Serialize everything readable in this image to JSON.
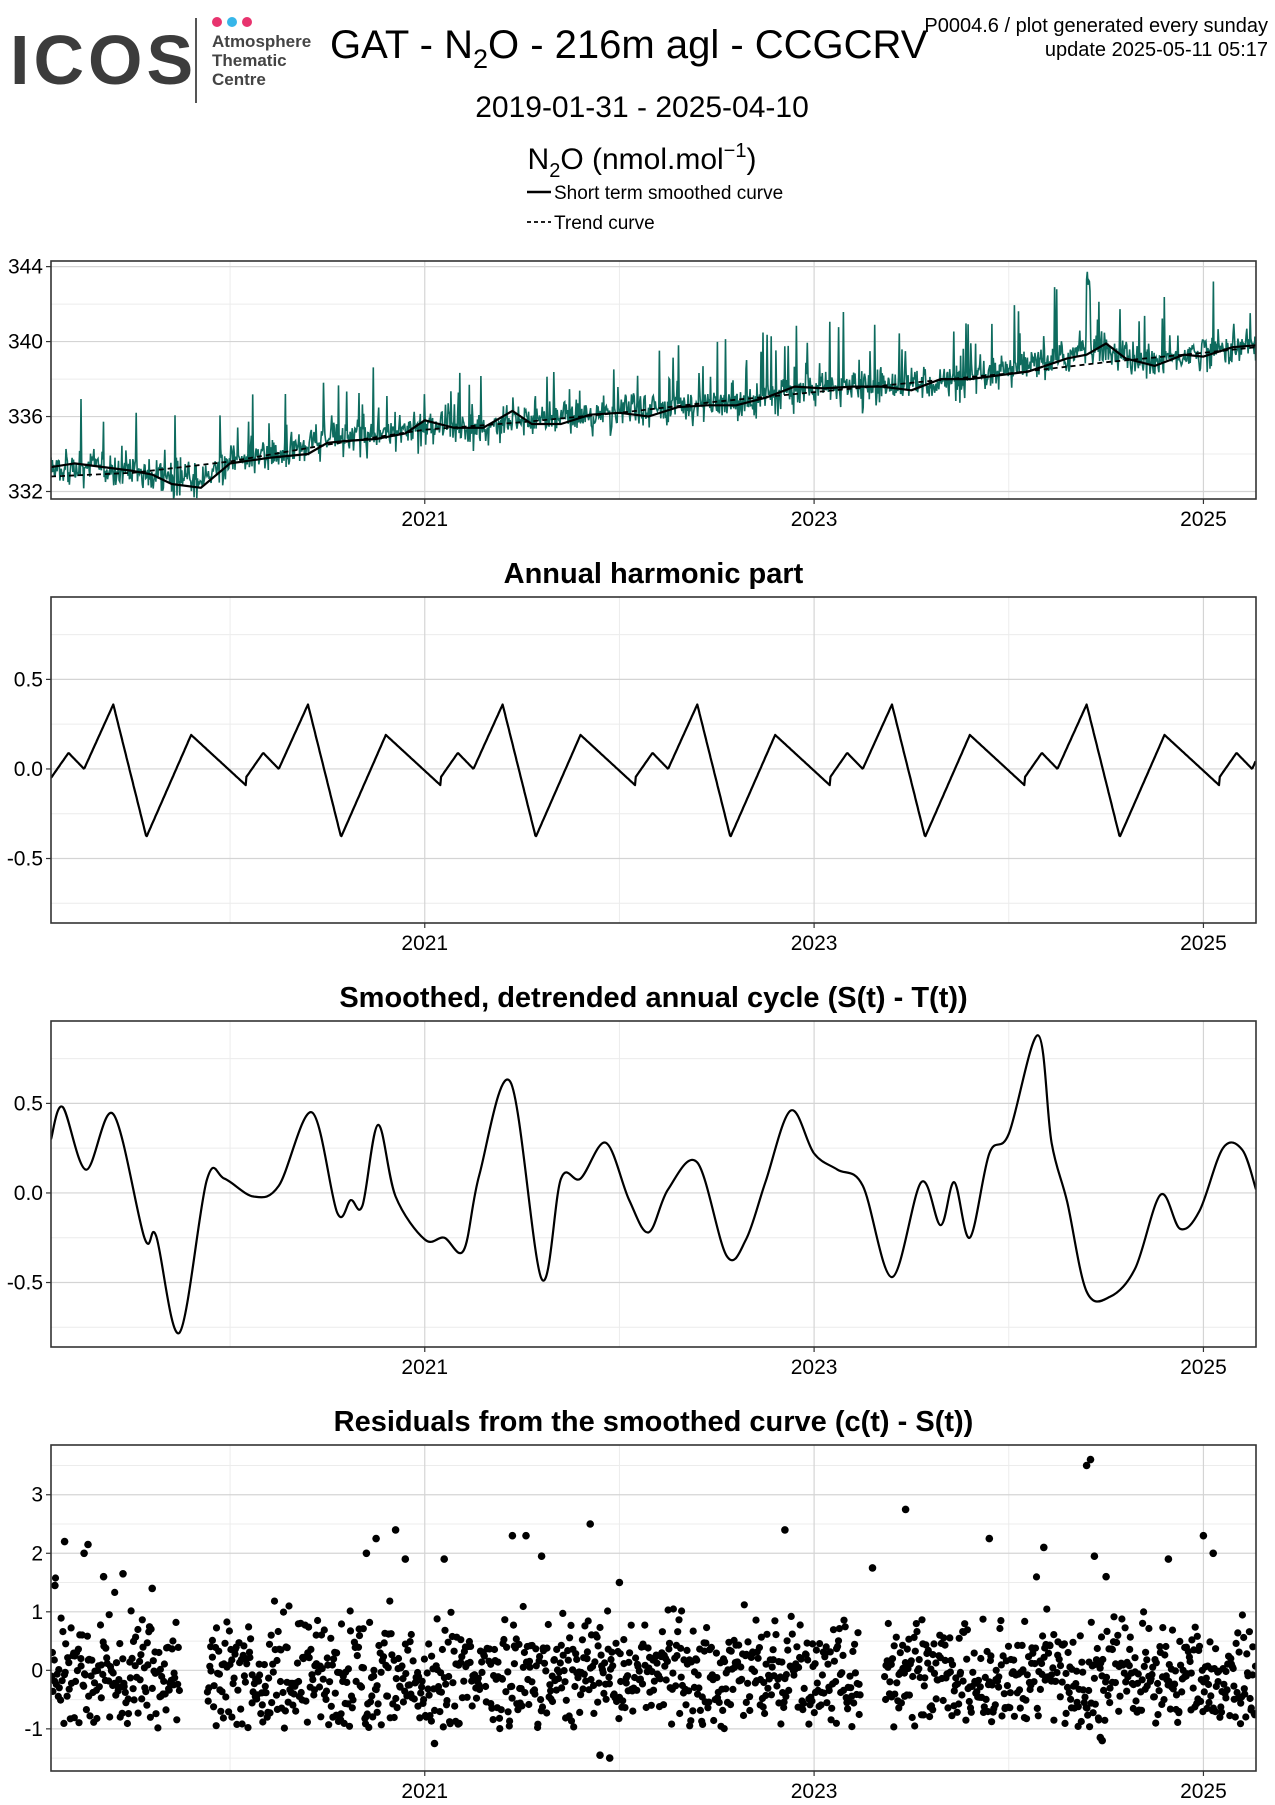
{
  "header": {
    "logo_text": "ICOS",
    "logo_sub": [
      "Atmosphere",
      "Thematic",
      "Centre"
    ],
    "logo_dot_colors": [
      "#e8336e",
      "#36b6e9",
      "#e8336e"
    ],
    "title_prefix": "GAT - N",
    "title_sub": "2",
    "title_suffix": "O - 216m agl - CCGCRV",
    "product_code": "P0004.6 / plot generated every sunday",
    "update": "update  2025-05-11 05:17",
    "date_range": "2019-01-31 - 2025-04-10",
    "units_prefix": "N",
    "units_sub": "2",
    "units_mid": "O (nmol.mol",
    "units_sup": "−1",
    "units_end": ")"
  },
  "legend": {
    "items": [
      {
        "label": "Short term smoothed curve",
        "style": "solid"
      },
      {
        "label": "Trend curve",
        "style": "dashed"
      }
    ]
  },
  "colors": {
    "measurement": "#0e6b5e",
    "curve": "#000000",
    "grid_major": "#d4d4d4",
    "grid_minor": "#ececec",
    "frame": "#333333"
  },
  "chart_data": [
    {
      "id": "timeseries",
      "type": "line",
      "title": "",
      "ylabel": "",
      "x_range": [
        2019.08,
        2025.27
      ],
      "ylim": [
        331.6,
        344.3
      ],
      "y_ticks": [
        332,
        336,
        340,
        344
      ],
      "x_ticks": [
        {
          "value": 2021,
          "label": "2021"
        },
        {
          "value": 2023,
          "label": "2023"
        },
        {
          "value": 2025,
          "label": "2025"
        }
      ],
      "grid": true,
      "series": [
        {
          "name": "",
          "kind": "measurements",
          "color": "#0e6b5e",
          "x": [
            2019.08,
            2019.3,
            2019.5,
            2019.7,
            2019.85,
            2020.0,
            2020.3,
            2020.5,
            2020.8,
            2021.0,
            2021.3,
            2021.5,
            2021.8,
            2022.0,
            2022.3,
            2022.5,
            2022.8,
            2023.0,
            2023.3,
            2023.5,
            2023.8,
            2024.0,
            2024.3,
            2024.4,
            2024.5,
            2024.7,
            2025.0,
            2025.27
          ],
          "y": [
            333.4,
            333.2,
            333.0,
            332.8,
            332.7,
            333.6,
            334.1,
            334.9,
            335.0,
            335.6,
            335.3,
            336.0,
            336.0,
            336.2,
            336.7,
            336.6,
            337.2,
            337.5,
            337.6,
            337.8,
            337.9,
            338.4,
            339.2,
            339.7,
            339.6,
            338.8,
            339.5,
            339.8
          ]
        },
        {
          "name": "Short term smoothed curve",
          "kind": "smoothed",
          "color": "#000000",
          "x": [
            2019.08,
            2019.2,
            2019.35,
            2019.5,
            2019.6,
            2019.7,
            2019.85,
            2020.0,
            2020.2,
            2020.4,
            2020.5,
            2020.6,
            2020.75,
            2020.9,
            2021.0,
            2021.15,
            2021.3,
            2021.45,
            2021.55,
            2021.7,
            2021.85,
            2022.0,
            2022.15,
            2022.3,
            2022.45,
            2022.6,
            2022.75,
            2022.9,
            2023.05,
            2023.2,
            2023.35,
            2023.5,
            2023.65,
            2023.8,
            2023.95,
            2024.1,
            2024.3,
            2024.4,
            2024.5,
            2024.6,
            2024.75,
            2024.9,
            2025.0,
            2025.15,
            2025.27
          ],
          "y": [
            333.3,
            333.5,
            333.3,
            333.1,
            332.9,
            332.4,
            332.2,
            333.5,
            333.8,
            334.0,
            334.6,
            334.7,
            334.8,
            335.1,
            335.8,
            335.4,
            335.4,
            336.3,
            335.6,
            335.6,
            336.1,
            336.2,
            336.0,
            336.5,
            336.6,
            336.6,
            337.0,
            337.6,
            337.5,
            337.6,
            337.6,
            337.4,
            338.0,
            338.0,
            338.2,
            338.4,
            339.1,
            339.3,
            339.9,
            339.1,
            338.7,
            339.3,
            339.2,
            339.7,
            339.8
          ]
        },
        {
          "name": "Trend curve",
          "kind": "trend",
          "color": "#000000",
          "x": [
            2019.08,
            2019.5,
            2020.0,
            2020.5,
            2021.0,
            2021.5,
            2022.0,
            2022.5,
            2023.0,
            2023.5,
            2024.0,
            2024.5,
            2025.0,
            2025.27
          ],
          "y": [
            332.8,
            333.0,
            333.6,
            334.5,
            335.3,
            335.7,
            336.2,
            336.8,
            337.3,
            337.8,
            338.3,
            338.9,
            339.4,
            339.7
          ]
        }
      ]
    },
    {
      "id": "harmonic",
      "type": "line",
      "title": "Annual harmonic part",
      "x_range": [
        2019.08,
        2025.27
      ],
      "ylim": [
        -0.86,
        0.96
      ],
      "y_ticks": [
        {
          "value": -0.5,
          "label": "-0.5"
        },
        {
          "value": 0.0,
          "label": "0.0"
        },
        {
          "value": 0.5,
          "label": "0.5"
        }
      ],
      "x_ticks": [
        {
          "value": 2021,
          "label": "2021"
        },
        {
          "value": 2023,
          "label": "2023"
        },
        {
          "value": 2025,
          "label": "2025"
        }
      ],
      "grid": true,
      "harmonics": [
        {
          "amp": 0.155,
          "phase": 0.0
        },
        {
          "amp": 0.155,
          "phase": 0.5
        },
        {
          "amp": 0.08,
          "phase": 2.2
        }
      ],
      "series": [
        {
          "name": "",
          "color": "#000000",
          "x": [
            2019.08,
            2019.17,
            2019.25,
            2019.4,
            2019.57,
            2019.8,
            2019.97,
            2020.1,
            2020.25,
            2020.4,
            2020.57,
            2020.8,
            2020.97
          ],
          "y": [
            -0.05,
            0.09,
            0.0,
            0.36,
            -0.38,
            0.19,
            -0.09,
            0.09,
            0.0,
            0.36,
            -0.38,
            0.19,
            -0.09
          ]
        }
      ]
    },
    {
      "id": "detrended",
      "type": "line",
      "title": "Smoothed, detrended annual cycle (S(t) - T(t))",
      "x_range": [
        2019.08,
        2025.27
      ],
      "ylim": [
        -0.86,
        0.96
      ],
      "y_ticks": [
        {
          "value": -0.5,
          "label": "-0.5"
        },
        {
          "value": 0.0,
          "label": "0.0"
        },
        {
          "value": 0.5,
          "label": "0.5"
        }
      ],
      "x_ticks": [
        {
          "value": 2021,
          "label": "2021"
        },
        {
          "value": 2023,
          "label": "2023"
        },
        {
          "value": 2025,
          "label": "2025"
        }
      ],
      "grid": true,
      "series": [
        {
          "name": "",
          "color": "#000000",
          "x": [
            2019.08,
            2019.14,
            2019.26,
            2019.4,
            2019.56,
            2019.62,
            2019.74,
            2019.88,
            2019.97,
            2020.12,
            2020.25,
            2020.42,
            2020.55,
            2020.62,
            2020.68,
            2020.76,
            2020.85,
            2021.0,
            2021.1,
            2021.2,
            2021.28,
            2021.44,
            2021.6,
            2021.7,
            2021.8,
            2021.93,
            2022.05,
            2022.15,
            2022.25,
            2022.4,
            2022.55,
            2022.65,
            2022.75,
            2022.88,
            2023.0,
            2023.12,
            2023.25,
            2023.4,
            2023.55,
            2023.65,
            2023.72,
            2023.8,
            2023.9,
            2024.0,
            2024.15,
            2024.22,
            2024.3,
            2024.4,
            2024.52,
            2024.65,
            2024.78,
            2024.88,
            2024.98,
            2025.1,
            2025.2,
            2025.27
          ],
          "y": [
            0.3,
            0.48,
            0.13,
            0.44,
            -0.25,
            -0.24,
            -0.78,
            0.07,
            0.08,
            -0.02,
            0.04,
            0.45,
            -0.11,
            -0.04,
            -0.07,
            0.38,
            -0.02,
            -0.26,
            -0.25,
            -0.32,
            0.1,
            0.62,
            -0.48,
            0.08,
            0.08,
            0.28,
            -0.04,
            -0.22,
            0.02,
            0.17,
            -0.35,
            -0.26,
            0.06,
            0.46,
            0.22,
            0.13,
            0.04,
            -0.47,
            0.06,
            -0.18,
            0.06,
            -0.25,
            0.22,
            0.33,
            0.88,
            0.28,
            -0.05,
            -0.55,
            -0.58,
            -0.42,
            -0.01,
            -0.2,
            -0.1,
            0.25,
            0.24,
            0.02
          ]
        }
      ]
    },
    {
      "id": "residuals",
      "type": "scatter",
      "title": "Residuals from the smoothed curve (c(t) - S(t))",
      "x_range": [
        2019.08,
        2025.27
      ],
      "ylim": [
        -1.72,
        3.85
      ],
      "y_ticks": [
        {
          "value": -1,
          "label": "-1"
        },
        {
          "value": 0,
          "label": "0"
        },
        {
          "value": 1,
          "label": "1"
        },
        {
          "value": 2,
          "label": "2"
        },
        {
          "value": 3,
          "label": "3"
        }
      ],
      "x_ticks": [
        {
          "value": 2021,
          "label": "2021"
        },
        {
          "value": 2023,
          "label": "2023"
        },
        {
          "value": 2025,
          "label": "2025"
        }
      ],
      "grid": true,
      "spread_sd": 0.48,
      "segments": [
        [
          2019.08,
          2019.74
        ],
        [
          2019.88,
          2023.24
        ],
        [
          2023.36,
          2025.27
        ]
      ],
      "points_per_year": 240,
      "outliers": {
        "x": [
          2019.1,
          2019.15,
          2019.25,
          2019.27,
          2019.35,
          2019.45,
          2019.6,
          2020.7,
          2020.75,
          2020.85,
          2020.9,
          2021.1,
          2021.45,
          2021.52,
          2021.6,
          2021.85,
          2022.0,
          2022.85,
          2023.3,
          2023.47,
          2023.9,
          2024.18,
          2024.4,
          2024.42,
          2024.44,
          2024.5,
          2024.82,
          2025.0,
          2025.05,
          2021.05,
          2021.9,
          2021.95,
          2024.47,
          2024.48
        ],
        "y": [
          1.45,
          2.2,
          2.0,
          2.15,
          1.6,
          1.65,
          1.4,
          2.0,
          2.25,
          2.4,
          1.9,
          1.9,
          2.3,
          2.3,
          1.95,
          2.5,
          1.5,
          2.4,
          1.75,
          2.75,
          2.25,
          2.1,
          3.5,
          3.6,
          1.95,
          1.6,
          1.9,
          2.3,
          2.0,
          -1.25,
          -1.45,
          -1.5,
          -1.15,
          -1.2
        ]
      },
      "series": [
        {
          "name": "",
          "color": "#000000"
        }
      ]
    }
  ]
}
